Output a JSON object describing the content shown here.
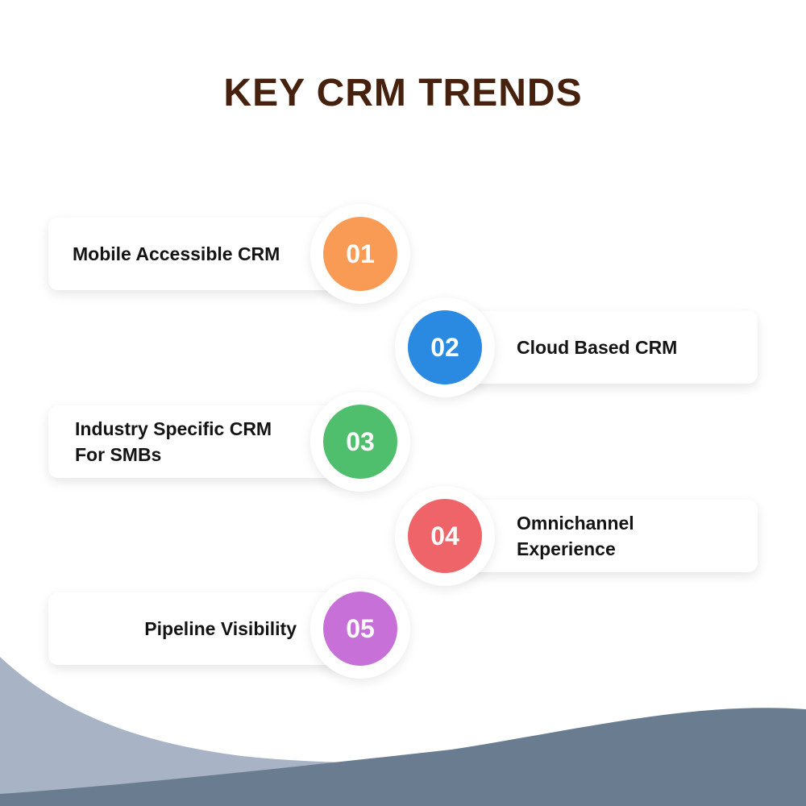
{
  "title": "KEY CRM TRENDS",
  "colors": {
    "title": "#46220e",
    "wave_light": "#a9b3c6",
    "wave_dark": "#6a7d90"
  },
  "trends": [
    {
      "number": "01",
      "label": "Mobile Accessible CRM",
      "side": "left",
      "color": "#f99a55"
    },
    {
      "number": "02",
      "label": "Cloud Based CRM",
      "side": "right",
      "color": "#2a8ae2"
    },
    {
      "number": "03",
      "label": "Industry Specific CRM For SMBs",
      "side": "left",
      "color": "#4fbf6d"
    },
    {
      "number": "04",
      "label": "Omnichannel Experience",
      "side": "right",
      "color": "#ef6469"
    },
    {
      "number": "05",
      "label": "Pipeline Visibility",
      "side": "left",
      "color": "#c770d8"
    }
  ]
}
